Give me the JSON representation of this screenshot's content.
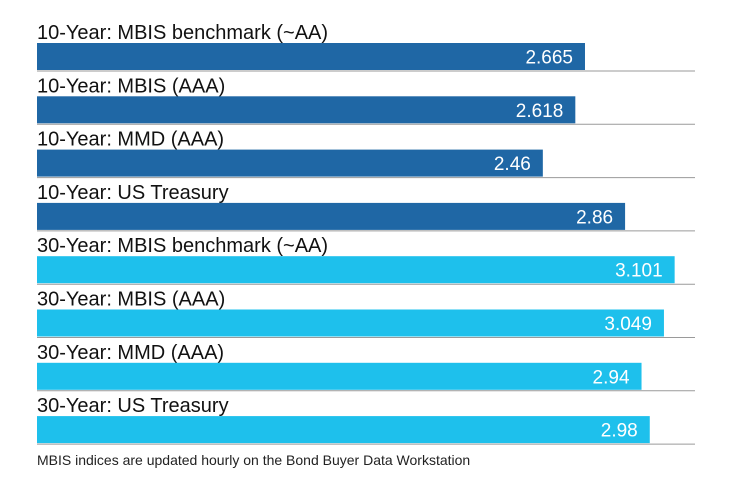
{
  "chart_data": {
    "type": "bar",
    "orientation": "horizontal",
    "categories": [
      "10-Year: MBIS benchmark (~AA)",
      "10-Year: MBIS (AAA)",
      "10-Year: MMD (AAA)",
      "10-Year: US Treasury",
      "30-Year: MBIS benchmark (~AA)",
      "30-Year: MBIS (AAA)",
      "30-Year: MMD (AAA)",
      "30-Year: US Treasury"
    ],
    "values": [
      2.665,
      2.618,
      2.46,
      2.86,
      3.101,
      3.049,
      2.94,
      2.98
    ],
    "value_labels": [
      "2.665",
      "2.618",
      "2.46",
      "2.86",
      "3.101",
      "3.049",
      "2.94",
      "2.98"
    ],
    "bar_colors": [
      "#1f67a5",
      "#1f67a5",
      "#1f67a5",
      "#1f67a5",
      "#1ec0ec",
      "#1ec0ec",
      "#1ec0ec",
      "#1ec0ec"
    ],
    "xlim": [
      0,
      3.2
    ],
    "grid": false,
    "title": "",
    "xlabel": "",
    "ylabel": ""
  },
  "footnote": "MBIS indices are updated hourly on the Bond Buyer Data Workstation"
}
